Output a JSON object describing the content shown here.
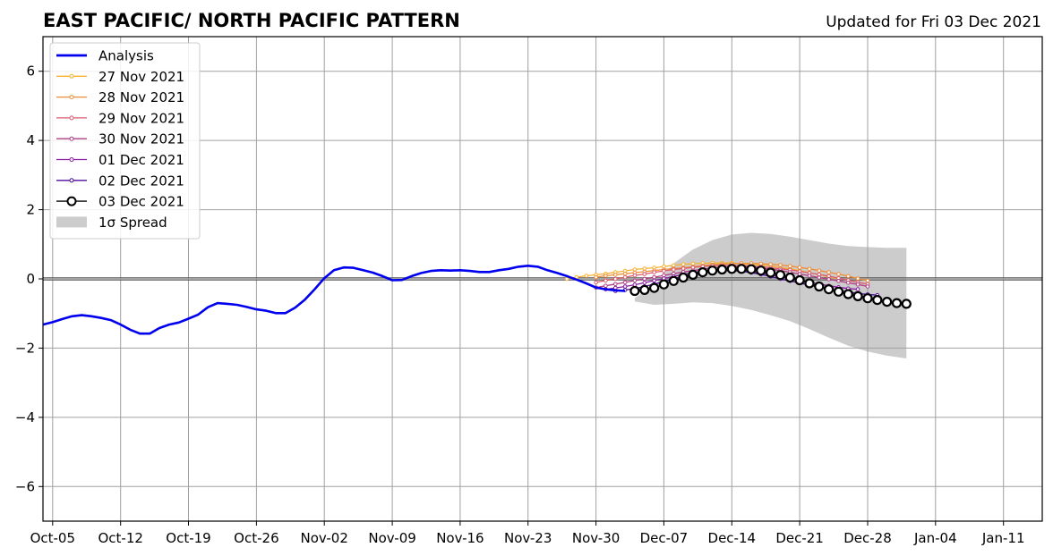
{
  "chart_data": {
    "type": "line",
    "title": "EAST PACIFIC/ NORTH PACIFIC PATTERN",
    "subtitle": "Updated for Fri 03 Dec 2021",
    "xlabel": "",
    "ylabel": "",
    "x_range": [
      "2021-10-04",
      "2022-01-15"
    ],
    "ylim": [
      -7,
      7
    ],
    "grid": true,
    "legend_placement": "top-left",
    "x_tick_labels": [
      "Oct-05",
      "Oct-12",
      "Oct-19",
      "Oct-26",
      "Nov-02",
      "Nov-09",
      "Nov-16",
      "Nov-23",
      "Nov-30",
      "Dec-07",
      "Dec-14",
      "Dec-21",
      "Dec-28",
      "Jan-04",
      "Jan-11"
    ],
    "x_tick_dates": [
      "2021-10-05",
      "2021-10-12",
      "2021-10-19",
      "2021-10-26",
      "2021-11-02",
      "2021-11-09",
      "2021-11-16",
      "2021-11-23",
      "2021-11-30",
      "2021-12-07",
      "2021-12-14",
      "2021-12-21",
      "2021-12-28",
      "2022-01-04",
      "2022-01-11"
    ],
    "y_ticks": [
      -6,
      -4,
      -2,
      0,
      2,
      4,
      6
    ],
    "y_tick_labels": [
      "−6",
      "−4",
      "−2",
      "0",
      "2",
      "4",
      "6"
    ],
    "analysis": {
      "name": "Analysis",
      "color": "#0000ee",
      "dates": [
        "2021-10-04",
        "2021-10-05",
        "2021-10-06",
        "2021-10-07",
        "2021-10-08",
        "2021-10-09",
        "2021-10-10",
        "2021-10-11",
        "2021-10-12",
        "2021-10-13",
        "2021-10-14",
        "2021-10-15",
        "2021-10-16",
        "2021-10-17",
        "2021-10-18",
        "2021-10-19",
        "2021-10-20",
        "2021-10-21",
        "2021-10-22",
        "2021-10-23",
        "2021-10-24",
        "2021-10-25",
        "2021-10-26",
        "2021-10-27",
        "2021-10-28",
        "2021-10-29",
        "2021-10-30",
        "2021-10-31",
        "2021-11-01",
        "2021-11-02",
        "2021-11-03",
        "2021-11-04",
        "2021-11-05",
        "2021-11-06",
        "2021-11-07",
        "2021-11-08",
        "2021-11-09",
        "2021-11-10",
        "2021-11-11",
        "2021-11-12",
        "2021-11-13",
        "2021-11-14",
        "2021-11-15",
        "2021-11-16",
        "2021-11-17",
        "2021-11-18",
        "2021-11-19",
        "2021-11-20",
        "2021-11-21",
        "2021-11-22",
        "2021-11-23",
        "2021-11-24",
        "2021-11-25",
        "2021-11-26",
        "2021-11-27",
        "2021-11-28",
        "2021-11-29",
        "2021-11-30",
        "2021-12-01",
        "2021-12-02",
        "2021-12-03"
      ],
      "values": [
        -1.32,
        -1.25,
        -1.16,
        -1.08,
        -1.05,
        -1.08,
        -1.13,
        -1.19,
        -1.32,
        -1.47,
        -1.58,
        -1.58,
        -1.42,
        -1.32,
        -1.26,
        -1.15,
        -1.03,
        -0.82,
        -0.7,
        -0.72,
        -0.75,
        -0.81,
        -0.88,
        -0.92,
        -0.99,
        -0.99,
        -0.83,
        -0.6,
        -0.3,
        0.02,
        0.25,
        0.33,
        0.32,
        0.25,
        0.18,
        0.08,
        -0.04,
        -0.03,
        0.08,
        0.17,
        0.23,
        0.25,
        0.24,
        0.25,
        0.23,
        0.2,
        0.2,
        0.25,
        0.29,
        0.35,
        0.38,
        0.35,
        0.25,
        0.17,
        0.08,
        -0.02,
        -0.13,
        -0.25,
        -0.3,
        -0.33,
        -0.35
      ]
    },
    "spread": {
      "name": "1σ Spread",
      "color": "#cccccc",
      "dates": [
        "2021-12-04",
        "2021-12-06",
        "2021-12-08",
        "2021-12-10",
        "2021-12-12",
        "2021-12-14",
        "2021-12-16",
        "2021-12-18",
        "2021-12-20",
        "2021-12-22",
        "2021-12-24",
        "2021-12-26",
        "2021-12-28",
        "2021-12-30",
        "2022-01-01"
      ],
      "upper": [
        -0.55,
        -0.2,
        0.45,
        0.85,
        1.12,
        1.28,
        1.33,
        1.3,
        1.22,
        1.12,
        1.02,
        0.95,
        0.92,
        0.9,
        0.9
      ],
      "lower": [
        -0.65,
        -0.75,
        -0.72,
        -0.68,
        -0.7,
        -0.78,
        -0.9,
        -1.05,
        -1.22,
        -1.45,
        -1.7,
        -1.93,
        -2.1,
        -2.22,
        -2.3
      ]
    },
    "forecasts": [
      {
        "name": "27 Nov 2021",
        "color": "#f7b131",
        "start": "2021-11-27",
        "values": [
          0.0,
          0.05,
          0.09,
          0.12,
          0.15,
          0.19,
          0.23,
          0.27,
          0.3,
          0.32,
          0.36,
          0.39,
          0.42,
          0.44,
          0.45,
          0.46,
          0.46,
          0.46,
          0.44,
          0.42,
          0.4,
          0.37,
          0.33,
          0.29,
          0.24,
          0.18,
          0.12,
          0.06,
          0.0
        ]
      },
      {
        "name": "28 Nov 2021",
        "color": "#ef8c37",
        "start": "2021-11-30",
        "values": [
          0.05,
          0.09,
          0.12,
          0.15,
          0.18,
          0.21,
          0.24,
          0.27,
          0.3,
          0.32,
          0.35,
          0.38,
          0.41,
          0.43,
          0.44,
          0.45,
          0.45,
          0.44,
          0.42,
          0.4,
          0.37,
          0.33,
          0.29,
          0.24,
          0.19,
          0.14,
          0.08,
          0.01,
          -0.05
        ]
      },
      {
        "name": "29 Nov 2021",
        "color": "#db5a6b",
        "start": "2021-11-30",
        "values": [
          -0.1,
          -0.05,
          0.0,
          0.05,
          0.1,
          0.14,
          0.19,
          0.23,
          0.27,
          0.3,
          0.33,
          0.36,
          0.38,
          0.39,
          0.39,
          0.39,
          0.37,
          0.35,
          0.32,
          0.29,
          0.26,
          0.22,
          0.17,
          0.13,
          0.08,
          0.02,
          -0.04,
          -0.1,
          -0.15
        ]
      },
      {
        "name": "30 Nov 2021",
        "color": "#b13e84",
        "start": "2021-11-30",
        "values": [
          -0.25,
          -0.2,
          -0.15,
          -0.1,
          -0.05,
          0.0,
          0.05,
          0.1,
          0.15,
          0.2,
          0.24,
          0.28,
          0.32,
          0.34,
          0.35,
          0.35,
          0.34,
          0.31,
          0.28,
          0.24,
          0.19,
          0.14,
          0.09,
          0.04,
          -0.01,
          -0.06,
          -0.11,
          -0.16,
          -0.22
        ]
      },
      {
        "name": "01 Dec 2021",
        "color": "#8a1ca2",
        "start": "2021-12-01",
        "values": [
          -0.3,
          -0.26,
          -0.22,
          -0.17,
          -0.11,
          -0.05,
          0.01,
          0.07,
          0.13,
          0.18,
          0.22,
          0.25,
          0.26,
          0.26,
          0.24,
          0.21,
          0.17,
          0.12,
          0.06,
          0.0,
          -0.05,
          -0.1,
          -0.15,
          -0.2,
          -0.24,
          -0.28,
          -0.3
        ]
      },
      {
        "name": "02 Dec 2021",
        "color": "#4e0b99",
        "start": "2021-12-02",
        "values": [
          -0.35,
          -0.32,
          -0.28,
          -0.22,
          -0.15,
          -0.08,
          0.0,
          0.07,
          0.13,
          0.18,
          0.22,
          0.24,
          0.24,
          0.22,
          0.18,
          0.13,
          0.07,
          0.0,
          -0.06,
          -0.12,
          -0.18,
          -0.24,
          -0.29,
          -0.34,
          -0.38,
          -0.42,
          -0.45,
          -0.47
        ]
      },
      {
        "name": "03 Dec 2021",
        "color": "#000000",
        "start": "2021-12-04",
        "values": [
          -0.35,
          -0.32,
          -0.26,
          -0.16,
          -0.06,
          0.04,
          0.12,
          0.19,
          0.24,
          0.27,
          0.29,
          0.29,
          0.28,
          0.24,
          0.18,
          0.11,
          0.04,
          -0.04,
          -0.13,
          -0.22,
          -0.3,
          -0.37,
          -0.44,
          -0.5,
          -0.56,
          -0.61,
          -0.66,
          -0.7,
          -0.72
        ]
      }
    ]
  }
}
